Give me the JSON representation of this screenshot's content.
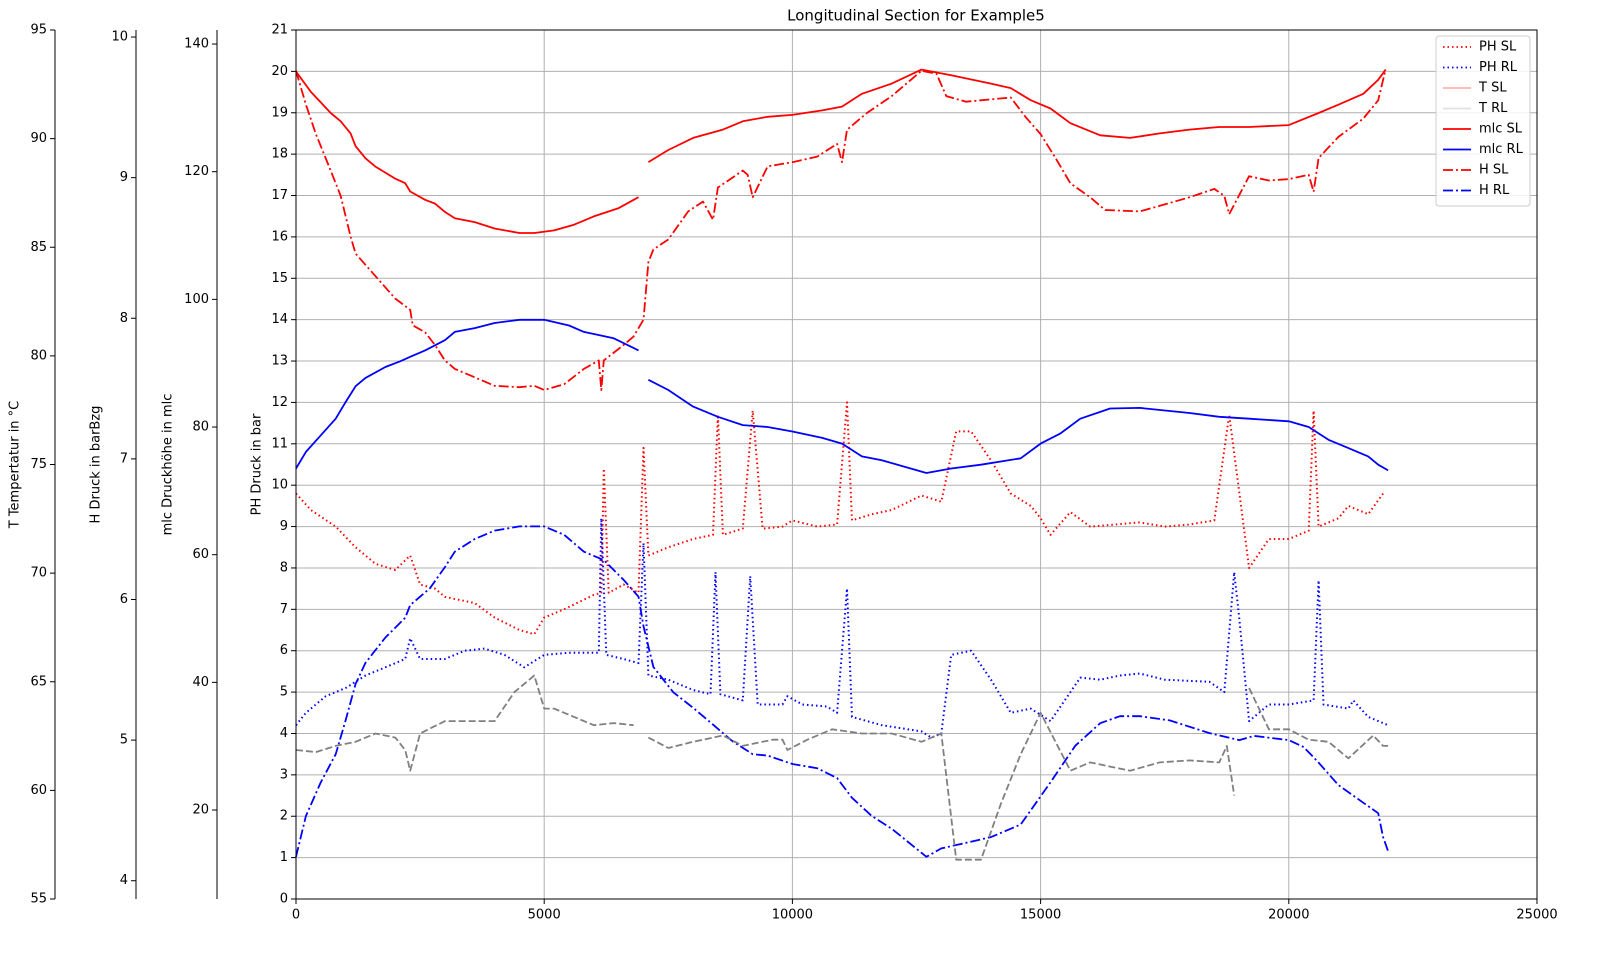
{
  "chart_data": {
    "type": "line",
    "title": "Longitudinal Section for Example5",
    "ylabel": "PH Druck in bar",
    "xlim": [
      0,
      25000
    ],
    "xticks": [
      0,
      5000,
      10000,
      15000,
      20000,
      25000
    ],
    "ylim": [
      0,
      21
    ],
    "yticks": [
      0,
      1,
      2,
      3,
      4,
      5,
      6,
      7,
      8,
      9,
      10,
      11,
      12,
      13,
      14,
      15,
      16,
      17,
      18,
      19,
      20,
      21
    ],
    "grid": true,
    "legend": "upper right",
    "extra_axes": [
      {
        "label": "T Tempertatur in °C",
        "lim": [
          55,
          95
        ],
        "ticks": [
          55,
          60,
          65,
          70,
          75,
          80,
          85,
          90,
          95
        ]
      },
      {
        "label": "H Druck in barBzg",
        "lim": [
          3.87,
          10.05
        ],
        "ticks": [
          4,
          5,
          6,
          7,
          8,
          9,
          10
        ]
      },
      {
        "label": "mlc Druckhöhe in mlc",
        "lim": [
          6.06,
          142.2
        ],
        "ticks": [
          20,
          40,
          60,
          80,
          100,
          120,
          140
        ]
      }
    ],
    "series": [
      {
        "name": "PH SL",
        "color": "#ff0000",
        "style": "dotted",
        "x": [
          0,
          300,
          800,
          1200,
          1600,
          2000,
          2300,
          2500,
          2800,
          3000,
          3600,
          4000,
          4500,
          4800,
          5000,
          5400,
          6000,
          6150,
          6200,
          6300,
          6600,
          6900,
          7000,
          7100,
          7500,
          8000,
          8400,
          8500,
          8600,
          9000,
          9200,
          9400,
          9800,
          10000,
          10500,
          10900,
          11100,
          11200,
          11600,
          12000,
          12600,
          13000,
          13300,
          13600,
          14000,
          14400,
          14800,
          15000,
          15200,
          15600,
          16000,
          16500,
          17000,
          17500,
          18000,
          18500,
          18800,
          19200,
          19600,
          20000,
          20400,
          20500,
          20600,
          21000,
          21200,
          21600,
          21900
        ],
        "values": [
          9.8,
          9.4,
          9.0,
          8.5,
          8.1,
          7.95,
          8.3,
          7.6,
          7.5,
          7.3,
          7.15,
          6.8,
          6.5,
          6.4,
          6.8,
          7.0,
          7.35,
          7.4,
          10.4,
          7.4,
          7.6,
          7.4,
          10.9,
          8.3,
          8.5,
          8.7,
          8.8,
          11.7,
          8.8,
          8.95,
          11.8,
          8.95,
          9.0,
          9.15,
          9.0,
          9.05,
          12.0,
          9.15,
          9.3,
          9.4,
          9.75,
          9.6,
          11.3,
          11.3,
          10.6,
          9.8,
          9.5,
          9.2,
          8.8,
          9.35,
          9.0,
          9.05,
          9.1,
          9.0,
          9.05,
          9.15,
          11.7,
          8.0,
          8.7,
          8.7,
          8.9,
          11.8,
          9.0,
          9.2,
          9.5,
          9.3,
          9.8
        ]
      },
      {
        "name": "PH RL",
        "color": "#0000ff",
        "style": "dotted",
        "x": [
          0,
          200,
          600,
          1000,
          1400,
          1800,
          2200,
          2300,
          2500,
          3000,
          3400,
          3800,
          4200,
          4600,
          5000,
          5500,
          6100,
          6150,
          6250,
          6600,
          6900,
          7000,
          7100,
          7500,
          8000,
          8350,
          8450,
          8550,
          9000,
          9150,
          9300,
          9800,
          9900,
          10200,
          10700,
          10900,
          11100,
          11200,
          11800,
          12600,
          12800,
          13000,
          13200,
          13600,
          14000,
          14400,
          14800,
          15200,
          15600,
          15800,
          16200,
          16600,
          17000,
          17500,
          18400,
          18700,
          18900,
          19000,
          19200,
          19600,
          20000,
          20500,
          20600,
          20700,
          21200,
          21300,
          21600,
          22000
        ],
        "values": [
          4.2,
          4.5,
          4.9,
          5.1,
          5.4,
          5.6,
          5.8,
          6.3,
          5.8,
          5.8,
          6.0,
          6.05,
          5.9,
          5.6,
          5.9,
          5.95,
          5.95,
          9.2,
          5.9,
          5.8,
          5.7,
          8.6,
          5.4,
          5.3,
          5.05,
          4.95,
          7.9,
          4.95,
          4.8,
          7.8,
          4.7,
          4.7,
          4.9,
          4.7,
          4.65,
          4.5,
          7.5,
          4.4,
          4.2,
          4.05,
          3.9,
          4.0,
          5.9,
          6.0,
          5.3,
          4.5,
          4.6,
          4.3,
          5.0,
          5.35,
          5.3,
          5.4,
          5.45,
          5.3,
          5.25,
          5.0,
          7.9,
          6.8,
          4.3,
          4.7,
          4.7,
          4.8,
          7.7,
          4.7,
          4.6,
          4.8,
          4.4,
          4.2
        ]
      },
      {
        "name": "T SL",
        "color": "#ffb0b0",
        "style": "solid",
        "x": [],
        "values": []
      },
      {
        "name": "T RL",
        "color": "#e0e0e0",
        "style": "solid",
        "x": [],
        "values": []
      },
      {
        "name": "mlc SL",
        "color": "#ff0000",
        "style": "solid",
        "axis": 2,
        "x": [
          0,
          300,
          700,
          900,
          1100,
          1200,
          1400,
          1600,
          2000,
          2200,
          2300,
          2600,
          2800,
          3000,
          3200,
          3600,
          4000,
          4500,
          4800,
          5200,
          5600,
          6000,
          6500,
          6900,
          7000,
          7100,
          7500,
          8000,
          8600,
          9000,
          9500,
          10000,
          10600,
          11000,
          11400,
          12000,
          12600,
          13200,
          14000,
          14400,
          14800,
          15200,
          15600,
          16200,
          16800,
          17400,
          18000,
          18600,
          19200,
          20000,
          20600,
          21000,
          21500,
          21800,
          21950
        ],
        "values": [
          135.7,
          132.5,
          129.2,
          127.9,
          126.0,
          124.0,
          122.1,
          120.8,
          118.9,
          118.2,
          116.9,
          115.6,
          115.0,
          113.7,
          112.7,
          112.1,
          111.1,
          110.4,
          110.4,
          110.8,
          111.7,
          113.0,
          114.3,
          116.0,
          null,
          121.5,
          123.4,
          125.3,
          126.6,
          127.9,
          128.6,
          128.9,
          129.6,
          130.2,
          132.2,
          133.8,
          136.0,
          135.1,
          133.8,
          133.1,
          131.2,
          129.9,
          127.6,
          125.7,
          125.3,
          126.0,
          126.6,
          127.0,
          127.0,
          127.3,
          129.2,
          130.5,
          132.2,
          134.4,
          136.0
        ]
      },
      {
        "name": "mlc RL",
        "color": "#0000ff",
        "style": "solid",
        "axis": 2,
        "x": [
          0,
          200,
          500,
          800,
          1000,
          1200,
          1400,
          1800,
          2100,
          2300,
          2600,
          3000,
          3200,
          3600,
          4000,
          4500,
          5000,
          5500,
          5800,
          6400,
          6900,
          7000,
          7100,
          7500,
          8000,
          8500,
          9000,
          9500,
          10000,
          10600,
          11000,
          11400,
          11800,
          12700,
          13200,
          13800,
          14600,
          15000,
          15400,
          15800,
          16400,
          17000,
          18000,
          18600,
          19200,
          20000,
          20400,
          20800,
          21200,
          21600,
          21800,
          22000
        ],
        "values": [
          73.5,
          76.1,
          78.7,
          81.3,
          83.9,
          86.4,
          87.7,
          89.4,
          90.3,
          91.0,
          92.0,
          93.6,
          94.9,
          95.5,
          96.3,
          96.8,
          96.8,
          95.9,
          94.9,
          93.9,
          92.0,
          null,
          87.4,
          85.8,
          83.2,
          81.6,
          80.3,
          80.0,
          79.3,
          78.3,
          77.4,
          75.4,
          74.8,
          72.8,
          73.5,
          74.1,
          75.1,
          77.4,
          79.0,
          81.3,
          82.9,
          83.0,
          82.2,
          81.6,
          81.3,
          80.9,
          80.0,
          78.0,
          76.7,
          75.4,
          74.1,
          73.2
        ]
      },
      {
        "name": "H SL",
        "color": "#ff0000",
        "style": "dashdot",
        "axis": 1,
        "x": [
          0,
          200,
          400,
          700,
          900,
          1100,
          1200,
          1500,
          2000,
          2300,
          2350,
          2600,
          2800,
          3000,
          3200,
          3600,
          4000,
          4500,
          4800,
          5000,
          5400,
          5800,
          6100,
          6150,
          6200,
          6600,
          6800,
          7000,
          7100,
          7200,
          7500,
          7900,
          8200,
          8400,
          8500,
          9000,
          9100,
          9200,
          9500,
          10000,
          10500,
          10900,
          11000,
          11100,
          11500,
          12000,
          12600,
          12900,
          13100,
          13500,
          14400,
          14700,
          15000,
          15300,
          15600,
          16000,
          16300,
          17000,
          17500,
          18000,
          18500,
          18700,
          18800,
          19200,
          19600,
          20000,
          20400,
          20500,
          20600,
          21000,
          21500,
          21800,
          21950
        ],
        "values": [
          9.76,
          9.52,
          9.31,
          9.05,
          8.87,
          8.58,
          8.46,
          8.34,
          8.14,
          8.06,
          7.95,
          7.9,
          7.81,
          7.7,
          7.64,
          7.58,
          7.52,
          7.51,
          7.52,
          7.49,
          7.53,
          7.64,
          7.7,
          7.49,
          7.7,
          7.81,
          7.87,
          7.99,
          8.4,
          8.49,
          8.56,
          8.76,
          8.83,
          8.7,
          8.93,
          9.05,
          9.02,
          8.86,
          9.08,
          9.11,
          9.15,
          9.24,
          9.11,
          9.34,
          9.46,
          9.58,
          9.76,
          9.74,
          9.58,
          9.54,
          9.57,
          9.43,
          9.31,
          9.14,
          8.96,
          8.86,
          8.77,
          8.76,
          8.81,
          8.86,
          8.92,
          8.87,
          8.74,
          9.01,
          8.98,
          8.99,
          9.02,
          8.9,
          9.14,
          9.29,
          9.42,
          9.55,
          9.77
        ]
      },
      {
        "name": "H RL",
        "color": "#0000ff",
        "style": "dashdot",
        "axis": 1,
        "x": [
          0,
          200,
          500,
          800,
          1000,
          1200,
          1400,
          1800,
          2200,
          2300,
          2700,
          3000,
          3200,
          3600,
          4000,
          4500,
          5000,
          5400,
          5800,
          6200,
          6600,
          6900,
          7000,
          7200,
          7600,
          8000,
          8400,
          8800,
          9200,
          9500,
          10000,
          10500,
          10900,
          11200,
          11600,
          12000,
          12700,
          13000,
          13500,
          14000,
          14600,
          15200,
          15700,
          16200,
          16600,
          17000,
          17600,
          18400,
          19000,
          19300,
          20000,
          20300,
          20600,
          21000,
          21400,
          21800,
          21900,
          22000
        ],
        "values": [
          4.17,
          4.46,
          4.7,
          4.9,
          5.14,
          5.4,
          5.55,
          5.73,
          5.87,
          5.96,
          6.08,
          6.23,
          6.34,
          6.43,
          6.49,
          6.52,
          6.52,
          6.46,
          6.34,
          6.28,
          6.14,
          6.02,
          5.81,
          5.52,
          5.34,
          5.23,
          5.11,
          4.99,
          4.9,
          4.89,
          4.83,
          4.8,
          4.73,
          4.59,
          4.46,
          4.37,
          4.17,
          4.23,
          4.27,
          4.31,
          4.4,
          4.7,
          4.96,
          5.12,
          5.17,
          5.17,
          5.14,
          5.05,
          5.0,
          5.03,
          5.0,
          4.95,
          4.84,
          4.68,
          4.58,
          4.48,
          4.31,
          4.21
        ]
      },
      {
        "color": "#808080",
        "style": "dashed",
        "x": [
          0,
          400,
          800,
          1200,
          1600,
          2000,
          2200,
          2300,
          2500,
          3000,
          3400,
          4000,
          4400,
          4800,
          5000,
          5200,
          5600,
          6000,
          6400,
          6800,
          7000,
          7100,
          7500,
          8000,
          8600,
          9000,
          9600,
          9800,
          9900,
          10300,
          10800,
          11400,
          12000,
          12600,
          13000,
          13300,
          13800,
          14200,
          14600,
          15000,
          15600,
          16000,
          16400,
          16800,
          17400,
          18000,
          18600,
          18750,
          18900,
          19000,
          19200,
          19600,
          20000,
          20400,
          20800,
          21200,
          21700,
          21900,
          22000
        ],
        "values": [
          3.6,
          3.55,
          3.7,
          3.8,
          4.0,
          3.9,
          3.6,
          3.1,
          4.0,
          4.3,
          4.3,
          4.3,
          5.0,
          5.4,
          4.6,
          4.6,
          4.4,
          4.2,
          4.25,
          4.2,
          null,
          3.9,
          3.65,
          3.8,
          3.95,
          3.7,
          3.85,
          3.85,
          3.6,
          3.85,
          4.1,
          4.0,
          4.0,
          3.8,
          4.0,
          0.95,
          0.95,
          2.3,
          3.5,
          4.5,
          3.1,
          3.3,
          3.2,
          3.1,
          3.3,
          3.35,
          3.3,
          3.7,
          2.5,
          null,
          5.1,
          4.1,
          4.1,
          3.85,
          3.8,
          3.4,
          3.95,
          3.7,
          3.7
        ]
      }
    ]
  }
}
